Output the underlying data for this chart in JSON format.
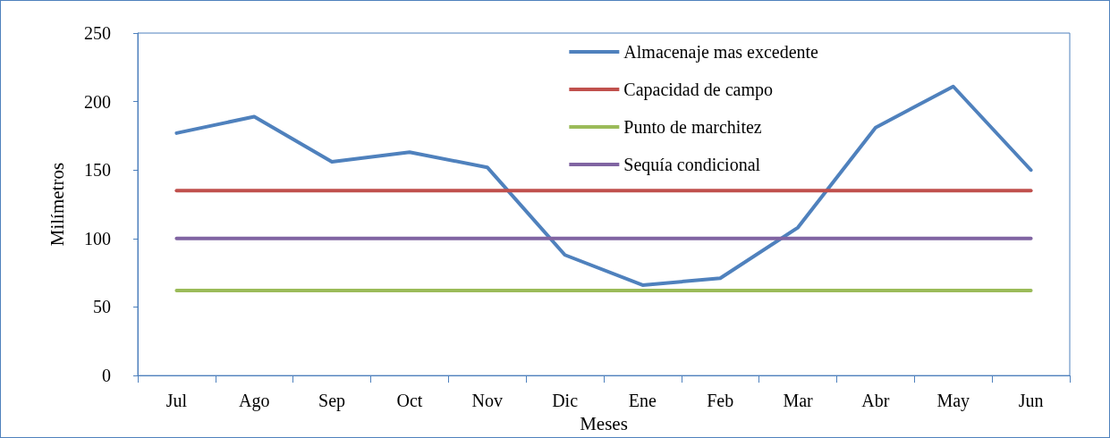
{
  "chart_data": {
    "type": "line",
    "xlabel": "Meses",
    "ylabel": "Milímetros",
    "categories": [
      "Jul",
      "Ago",
      "Sep",
      "Oct",
      "Nov",
      "Dic",
      "Ene",
      "Feb",
      "Mar",
      "Abr",
      "May",
      "Jun"
    ],
    "series": [
      {
        "name": "Almacenaje mas excedente",
        "color": "#4f81bd",
        "values": [
          177,
          189,
          156,
          163,
          152,
          88,
          66,
          71,
          108,
          181,
          211,
          150
        ]
      },
      {
        "name": "Capacidad de campo",
        "color": "#c0504d",
        "values": [
          135,
          135,
          135,
          135,
          135,
          135,
          135,
          135,
          135,
          135,
          135,
          135
        ]
      },
      {
        "name": "Punto de marchitez",
        "color": "#9bbb59",
        "values": [
          62,
          62,
          62,
          62,
          62,
          62,
          62,
          62,
          62,
          62,
          62,
          62
        ]
      },
      {
        "name": "Sequía condicional",
        "color": "#8064a2",
        "values": [
          100,
          100,
          100,
          100,
          100,
          100,
          100,
          100,
          100,
          100,
          100,
          100
        ]
      }
    ],
    "ylim": [
      0,
      250
    ],
    "yticks": [
      0,
      50,
      100,
      150,
      200,
      250
    ],
    "grid": false,
    "legend": "top right",
    "marker": "none",
    "line_style": "solid"
  }
}
